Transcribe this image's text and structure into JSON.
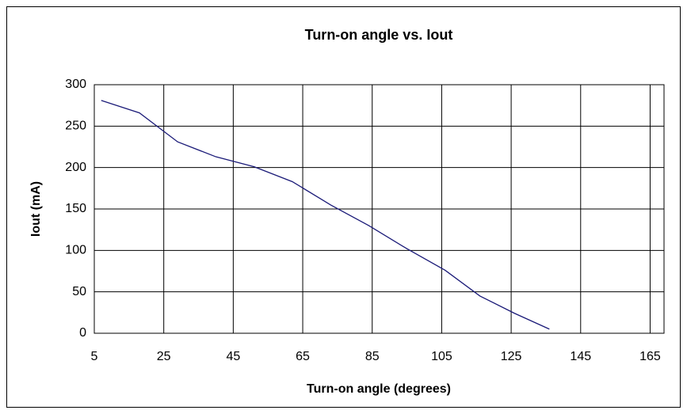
{
  "chart_data": {
    "type": "line",
    "title": "Turn-on angle vs. Iout",
    "x_label": "Turn-on angle (degrees)",
    "y_label": "Iout (mA)",
    "x": [
      7,
      18,
      29,
      40,
      51,
      62,
      73,
      84,
      95,
      106,
      116,
      126,
      136
    ],
    "series": [
      {
        "name": "Iout",
        "color": "#1a1a78",
        "values": [
          281,
          266,
          231,
          213,
          201,
          183,
          155,
          130,
          102,
          76,
          45,
          24,
          5
        ]
      }
    ],
    "xlim": [
      5,
      169
    ],
    "xticks": [
      5,
      25,
      45,
      65,
      85,
      105,
      125,
      145,
      165
    ],
    "ylim": [
      0,
      300
    ],
    "yticks": [
      0,
      50,
      100,
      150,
      200,
      250,
      300
    ],
    "grid": true
  }
}
